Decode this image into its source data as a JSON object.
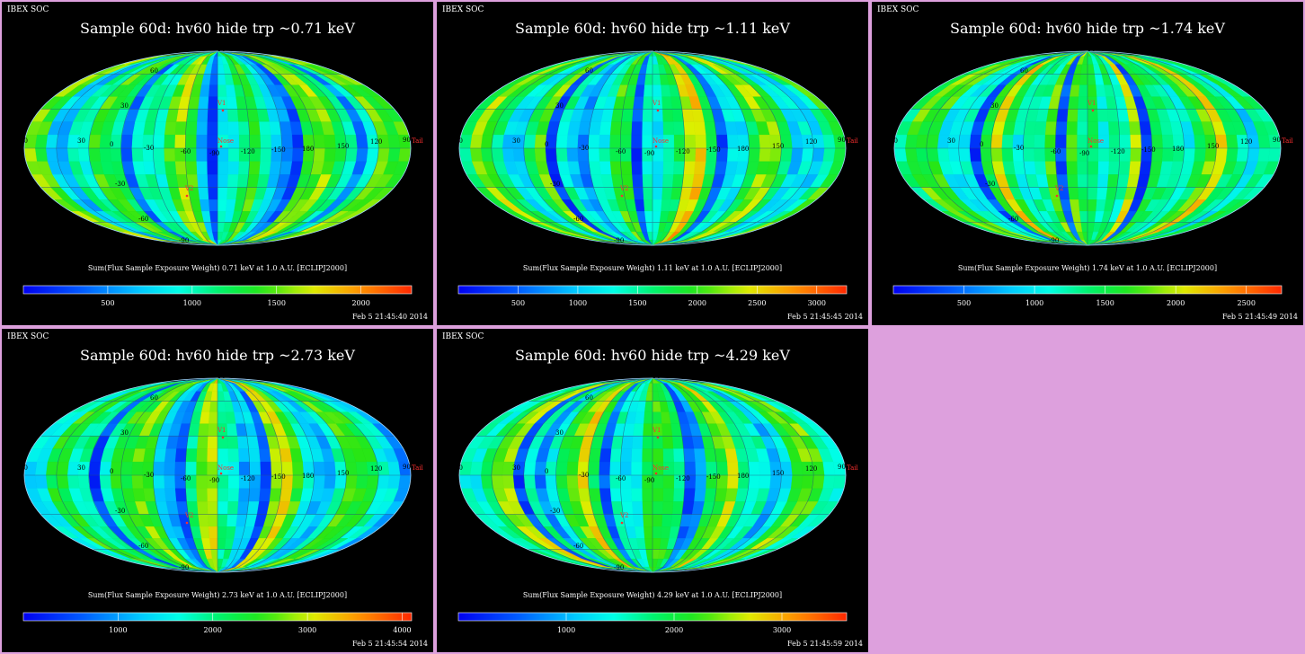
{
  "panels": [
    {
      "org": "IBEX SOC",
      "title": "Sample 60d: hv60 hide trp ~0.71 keV",
      "colorbar_title": "Sum(Flux Sample Exposure Weight)  0.71 keV at 1.0 A.U. [ECLIPJ2000]",
      "colorbar_ticks": [
        "500",
        "1000",
        "1500",
        "2000"
      ],
      "colorbar_tick_values": [
        500,
        1000,
        1500,
        2000
      ],
      "colorbar_max": 2300,
      "timestamp": "Feb  5 21:45:40 2014",
      "seed": 1,
      "level": 0.5
    },
    {
      "org": "IBEX SOC",
      "title": "Sample 60d: hv60 hide trp ~1.11 keV",
      "colorbar_title": "Sum(Flux Sample Exposure Weight)  1.11 keV at 1.0 A.U. [ECLIPJ2000]",
      "colorbar_ticks": [
        "500",
        "1000",
        "1500",
        "2000",
        "2500",
        "3000"
      ],
      "colorbar_tick_values": [
        500,
        1000,
        1500,
        2000,
        2500,
        3000
      ],
      "colorbar_max": 3250,
      "timestamp": "Feb  5 21:45:45 2014",
      "seed": 2,
      "level": 0.55
    },
    {
      "org": "IBEX SOC",
      "title": "Sample 60d: hv60 hide trp ~1.74 keV",
      "colorbar_title": "Sum(Flux Sample Exposure Weight)  1.74 keV at 1.0 A.U. [ECLIPJ2000]",
      "colorbar_ticks": [
        "500",
        "1000",
        "1500",
        "2000",
        "2500"
      ],
      "colorbar_tick_values": [
        500,
        1000,
        1500,
        2000,
        2500
      ],
      "colorbar_max": 2750,
      "timestamp": "Feb  5 21:45:49 2014",
      "seed": 3,
      "level": 0.6
    },
    {
      "org": "IBEX SOC",
      "title": "Sample 60d: hv60 hide trp ~2.73 keV",
      "colorbar_title": "Sum(Flux Sample Exposure Weight)  2.73 keV at 1.0 A.U. [ECLIPJ2000]",
      "colorbar_ticks": [
        "1000",
        "2000",
        "3000",
        "4000"
      ],
      "colorbar_tick_values": [
        1000,
        2000,
        3000,
        4000
      ],
      "colorbar_max": 4100,
      "timestamp": "Feb  5 21:45:54 2014",
      "seed": 4,
      "level": 0.52
    },
    {
      "org": "IBEX SOC",
      "title": "Sample 60d: hv60 hide trp ~4.29 keV",
      "colorbar_title": "Sum(Flux Sample Exposure Weight)  4.29 keV at 1.0 A.U. [ECLIPJ2000]",
      "colorbar_ticks": [
        "1000",
        "2000",
        "3000"
      ],
      "colorbar_tick_values": [
        1000,
        2000,
        3000
      ],
      "colorbar_max": 3600,
      "timestamp": "Feb  5 21:45:59 2014",
      "seed": 5,
      "level": 0.52
    }
  ],
  "map_labels": {
    "lon": [
      "60",
      "30",
      "0",
      "-30",
      "-60",
      "-90",
      "-120",
      "-150",
      "180",
      "150",
      "120",
      "90"
    ],
    "lat": [
      "60",
      "30",
      "-30",
      "-60",
      "-90",
      "90"
    ],
    "markers": [
      "V1",
      "V2",
      "Nose",
      "Tail"
    ]
  },
  "colors": {
    "background": "#dda0dd",
    "panel_bg": "#000000",
    "label_red": "#ff3030",
    "grid": "#2a4f7f"
  },
  "chart_data": [
    {
      "type": "heatmap",
      "title": "Sample 60d: hv60 hide trp ~0.71 keV",
      "projection": "mollweide",
      "colorbar_label": "Sum(Flux Sample Exposure Weight)  0.71 keV at 1.0 A.U. [ECLIPJ2000]",
      "colorbar_ticks": [
        500,
        1000,
        1500,
        2000
      ],
      "colorbar_range": [
        0,
        2300
      ]
    },
    {
      "type": "heatmap",
      "title": "Sample 60d: hv60 hide trp ~1.11 keV",
      "projection": "mollweide",
      "colorbar_label": "Sum(Flux Sample Exposure Weight)  1.11 keV at 1.0 A.U. [ECLIPJ2000]",
      "colorbar_ticks": [
        500,
        1000,
        1500,
        2000,
        2500,
        3000
      ],
      "colorbar_range": [
        0,
        3250
      ]
    },
    {
      "type": "heatmap",
      "title": "Sample 60d: hv60 hide trp ~1.74 keV",
      "projection": "mollweide",
      "colorbar_label": "Sum(Flux Sample Exposure Weight)  1.74 keV at 1.0 A.U. [ECLIPJ2000]",
      "colorbar_ticks": [
        500,
        1000,
        1500,
        2000,
        2500
      ],
      "colorbar_range": [
        0,
        2750
      ]
    },
    {
      "type": "heatmap",
      "title": "Sample 60d: hv60 hide trp ~2.73 keV",
      "projection": "mollweide",
      "colorbar_label": "Sum(Flux Sample Exposure Weight)  2.73 keV at 1.0 A.U. [ECLIPJ2000]",
      "colorbar_ticks": [
        1000,
        2000,
        3000,
        4000
      ],
      "colorbar_range": [
        0,
        4100
      ]
    },
    {
      "type": "heatmap",
      "title": "Sample 60d: hv60 hide trp ~4.29 keV",
      "projection": "mollweide",
      "colorbar_label": "Sum(Flux Sample Exposure Weight)  4.29 keV at 1.0 A.U. [ECLIPJ2000]",
      "colorbar_ticks": [
        1000,
        2000,
        3000
      ],
      "colorbar_range": [
        0,
        3600
      ]
    }
  ]
}
